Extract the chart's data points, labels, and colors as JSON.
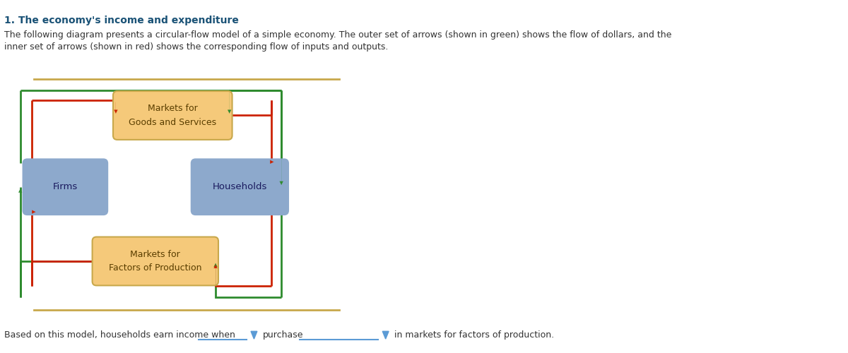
{
  "title": "1. The economy's income and expenditure",
  "title_color": "#1a5276",
  "desc1": "The following diagram presents a circular-flow model of a simple economy. The outer set of arrows (shown in green) shows the flow of dollars, and the",
  "desc2": "inner set of arrows (shown in red) shows the corresponding flow of inputs and outputs.",
  "box_market_color": "#f5c97a",
  "box_market_edge": "#c8a84b",
  "box_fh_color": "#8da9cc",
  "green_color": "#2e8b2e",
  "red_color": "#cc2200",
  "sep_color": "#c8a84b",
  "dropdown_color": "#5b9bd5",
  "text_dark": "#333333",
  "text_box_market": "#5a3e00",
  "text_box_fh": "#1a1a5e",
  "bottom_text1": "Based on this model, households earn income when",
  "bottom_text2": "purchase",
  "bottom_text3": "in markets for factors of production.",
  "fig_width": 12.0,
  "fig_height": 5.0
}
